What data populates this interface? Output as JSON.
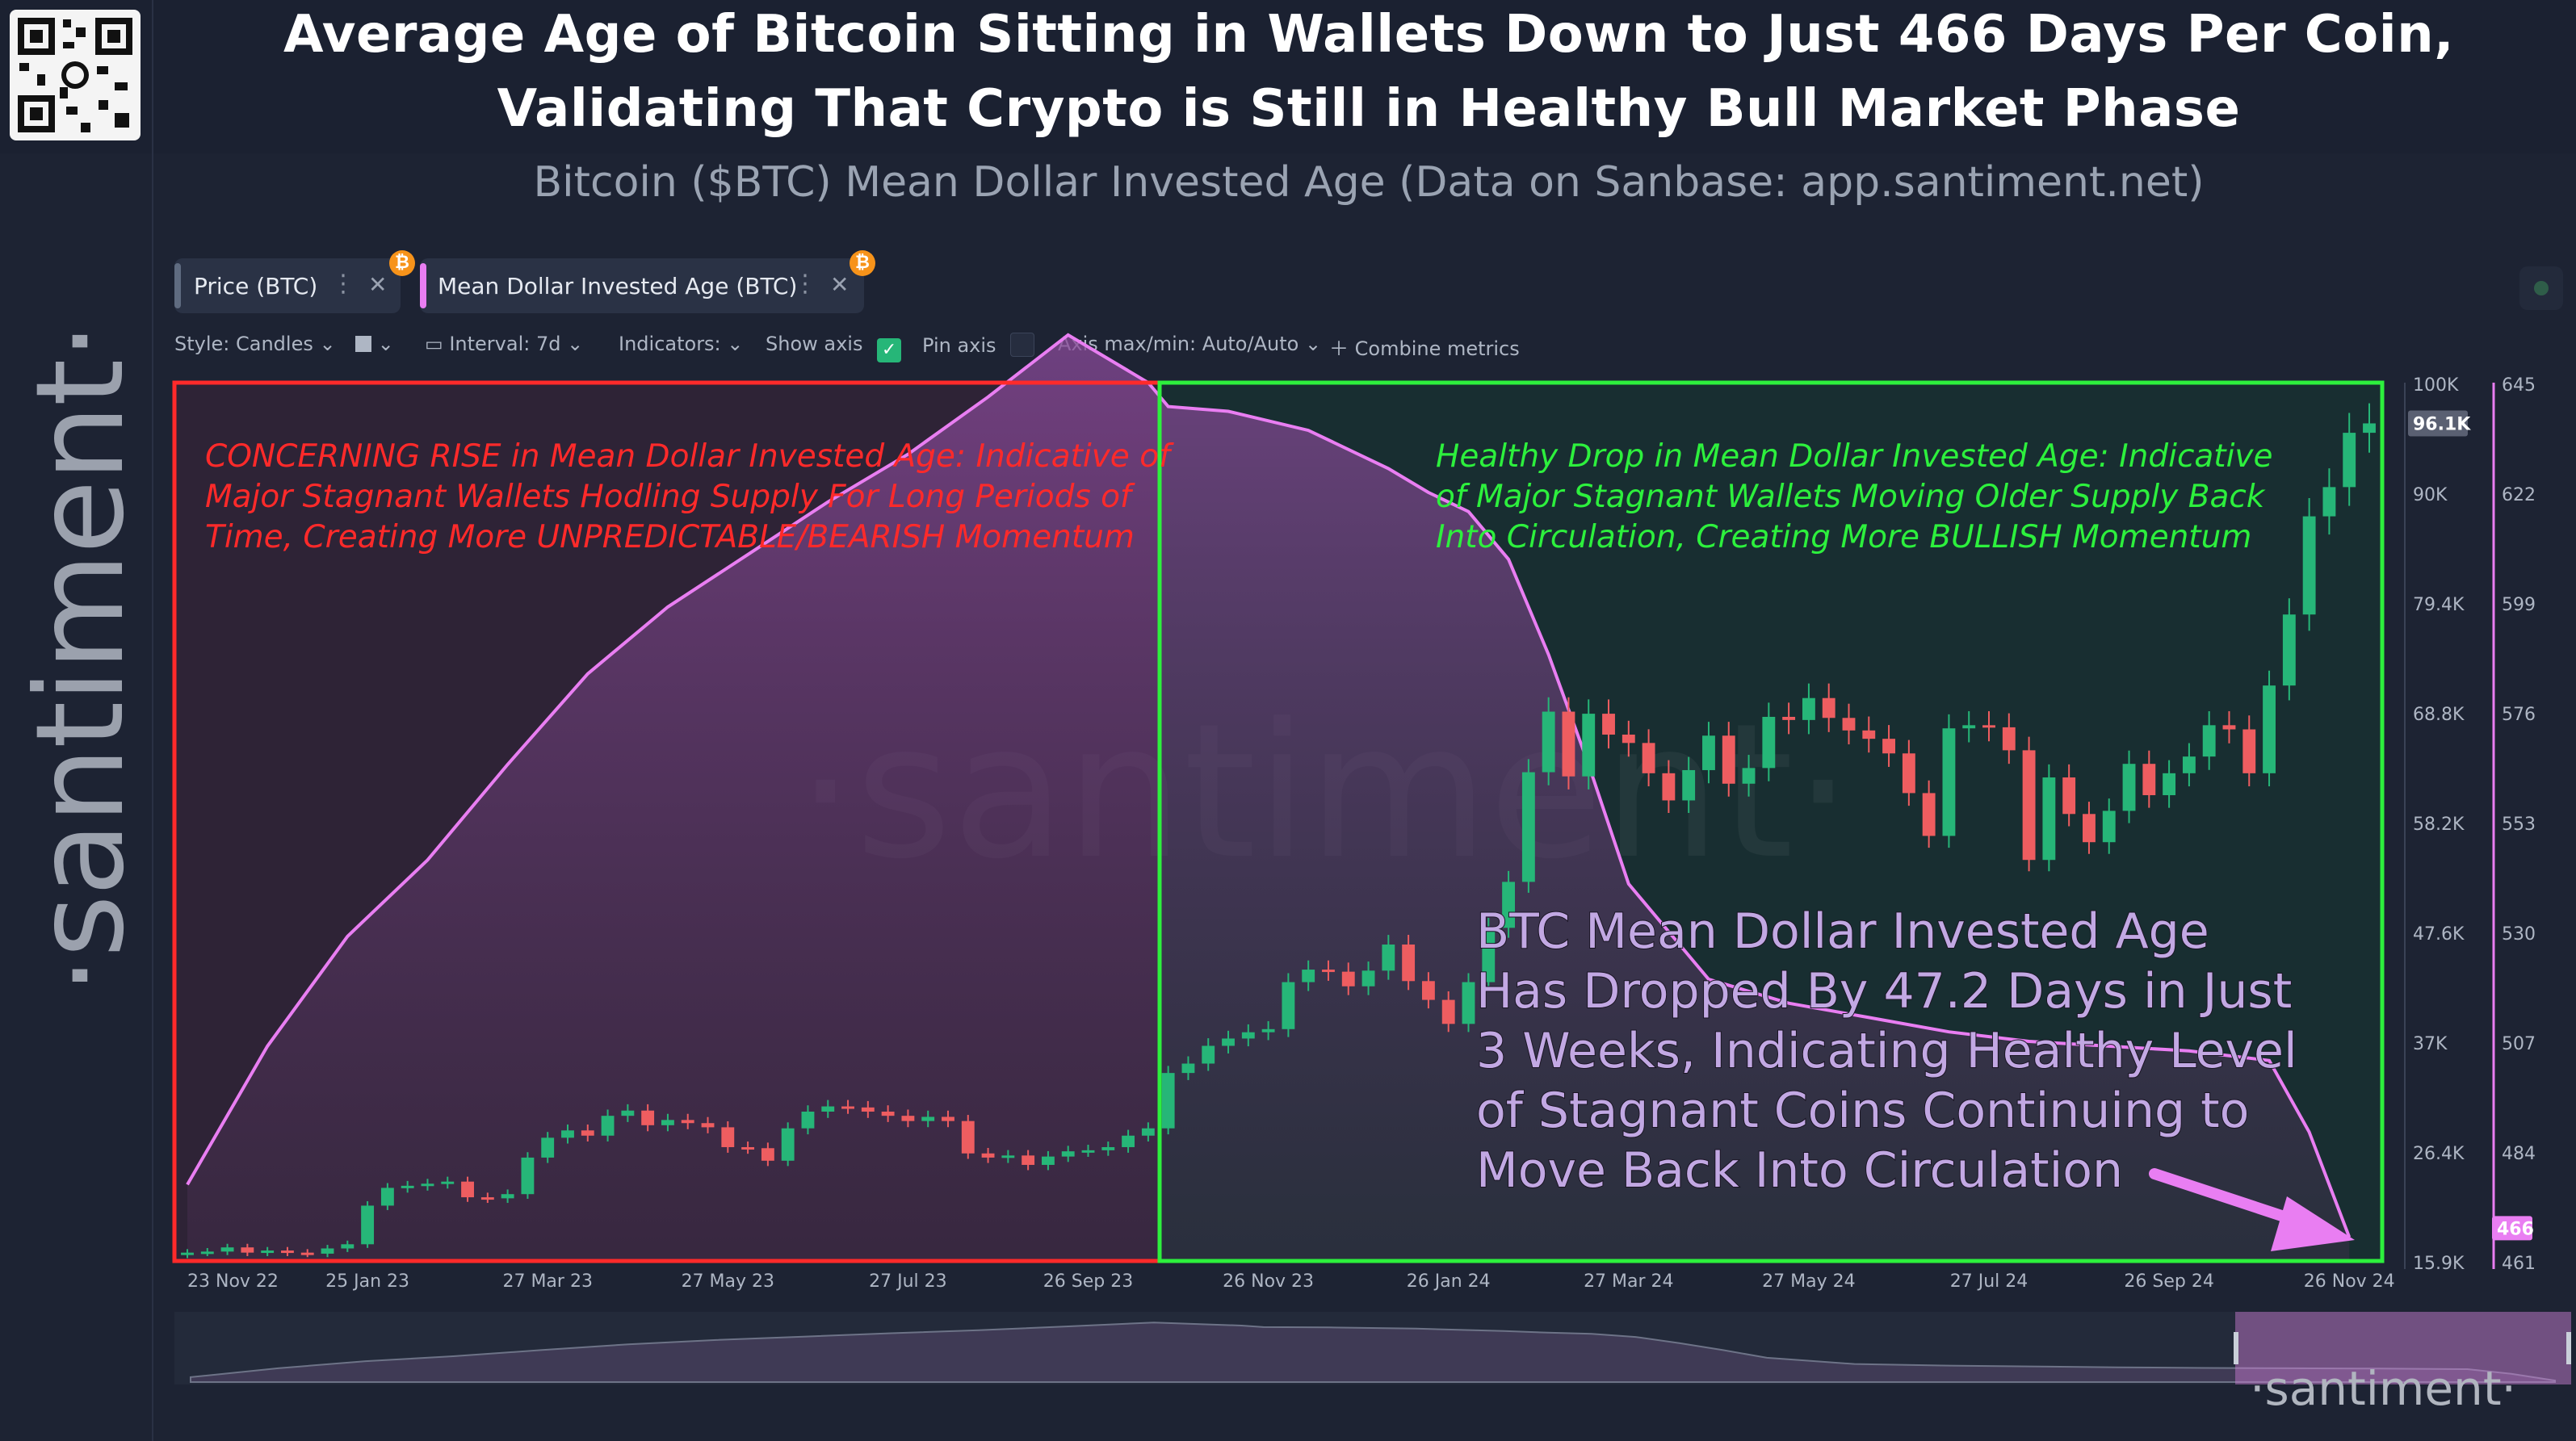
{
  "header": {
    "title_line1": "Average Age of Bitcoin Sitting in Wallets Down to Just 466 Days Per Coin,",
    "title_line2": "Validating That Crypto is Still in Healthy Bull Market Phase",
    "subtitle": "Bitcoin ($BTC) Mean Dollar Invested Age (Data on Sanbase: app.santiment.net)"
  },
  "brand": {
    "vertical_logo": "·santiment·",
    "watermark": "·santiment·",
    "navigator_logo": "·santiment·"
  },
  "metrics": [
    {
      "label": "Price (BTC)",
      "color": "#5f6b80"
    },
    {
      "label": "Mean Dollar Invested Age (BTC)",
      "color": "#e97ef2"
    }
  ],
  "toolbar": {
    "style": "Style: Candles",
    "interval": "Interval: 7d",
    "indicators": "Indicators:",
    "show_axis": "Show axis",
    "pin_axis": "Pin axis",
    "axis_minmax": "Axis max/min: Auto/Auto",
    "combine": "Combine metrics"
  },
  "icons": [
    "qr-code-icon",
    "bitcoin-icon",
    "more-dots-icon",
    "close-icon",
    "chevron-down-icon",
    "checkbox-checked-icon",
    "checkbox-empty-icon",
    "plus-icon",
    "status-dot-icon",
    "arrow-icon"
  ],
  "annotations": {
    "red_box_text": [
      "CONCERNING RISE in Mean Dollar Invested Age: Indicative of",
      "Major Stagnant Wallets Hodling Supply For Long Periods of",
      "Time, Creating More UNPREDICTABLE/BEARISH Momentum"
    ],
    "green_box_text": [
      "Healthy Drop in Mean Dollar Invested Age: Indicative",
      "of Major Stagnant Wallets Moving Older Supply Back",
      "Into Circulation, Creating More BULLISH Momentum"
    ],
    "callout_text": [
      "BTC Mean Dollar Invested Age",
      "Has Dropped By 47.2 Days in Just",
      "3 Weeks, Indicating Healthy Level",
      "of Stagnant Coins Continuing to",
      "Move Back Into Circulation"
    ],
    "red_color": "#ff2a2a",
    "green_color": "#2df03d",
    "callout_color": "#c2a8e3",
    "arrow_color": "#e97ef2"
  },
  "chart_data": {
    "type": "line",
    "x_tick_labels": [
      "23 Nov 22",
      "25 Jan 23",
      "27 Mar 23",
      "27 May 23",
      "27 Jul 23",
      "26 Sep 23",
      "26 Nov 23",
      "26 Jan 24",
      "27 Mar 24",
      "27 May 24",
      "27 Jul 24",
      "26 Sep 24",
      "26 Nov 24"
    ],
    "x_tick_index": [
      0,
      9,
      18,
      27,
      36,
      45,
      54,
      63,
      72,
      81,
      90,
      99,
      108
    ],
    "price_axis": {
      "labels": [
        "100K",
        "90K",
        "79.4K",
        "68.8K",
        "58.2K",
        "47.6K",
        "37K",
        "26.4K",
        "15.9K"
      ],
      "ylim": [
        15900,
        100000
      ],
      "current_label": "96.1K",
      "current_value": 96100
    },
    "mdia_axis": {
      "labels": [
        "645",
        "622",
        "599",
        "576",
        "553",
        "530",
        "507",
        "484",
        "461"
      ],
      "ylim": [
        461,
        645
      ],
      "current_label": "466",
      "current_value": 466
    },
    "mdia_series": {
      "name": "Mean Dollar Invested Age (BTC)",
      "color": "#e97ef2",
      "x": [
        0,
        4,
        8,
        12,
        16,
        20,
        24,
        28,
        32,
        36,
        40,
        44,
        48,
        49,
        52,
        56,
        60,
        62,
        64,
        66,
        68,
        70,
        72,
        74,
        76,
        80,
        84,
        88,
        92,
        96,
        100,
        104,
        106,
        108
      ],
      "values": [
        477,
        506,
        529,
        545,
        565,
        584,
        598,
        609,
        620,
        630,
        642,
        655,
        645,
        640,
        639,
        635,
        627,
        622,
        618,
        608,
        588,
        565,
        540,
        530,
        520,
        515,
        512,
        509,
        507,
        506,
        505,
        503,
        488,
        466
      ]
    },
    "price_series": {
      "name": "Price (BTC)",
      "up_color": "#26b678",
      "down_color": "#ee5d60",
      "open": [
        16500,
        16700,
        16800,
        17200,
        16700,
        16900,
        16700,
        16600,
        17100,
        17500,
        21200,
        22900,
        23100,
        23300,
        23500,
        22000,
        21900,
        22300,
        25800,
        27700,
        28400,
        27900,
        29800,
        30300,
        28900,
        29400,
        29100,
        28700,
        26800,
        26700,
        25500,
        28600,
        30200,
        30700,
        30600,
        30200,
        29800,
        29300,
        29700,
        29300,
        26200,
        25800,
        26000,
        25100,
        25900,
        26400,
        26500,
        26800,
        27900,
        28600,
        33900,
        34800,
        36500,
        37200,
        37800,
        38100,
        42600,
        43800,
        43600,
        42200,
        43700,
        46200,
        42700,
        40900,
        38600,
        42600,
        47800,
        52200,
        62700,
        68500,
        62300,
        68300,
        66300,
        65500,
        62600,
        60000,
        62900,
        66200,
        61600,
        63100,
        68000,
        67700,
        69800,
        67900,
        66700,
        65900,
        64500,
        60700,
        56600,
        66900,
        67200,
        67000,
        64800,
        54300,
        62200,
        58700,
        56000,
        59000,
        63500,
        60500,
        62600,
        64200,
        67200,
        66800,
        62600,
        71000,
        77800,
        87200,
        90000,
        95200
      ],
      "close": [
        16700,
        16800,
        17200,
        16700,
        16900,
        16700,
        16600,
        17100,
        17500,
        21200,
        22900,
        23100,
        23300,
        23500,
        22000,
        21900,
        22300,
        25800,
        27700,
        28400,
        27900,
        29800,
        30300,
        28900,
        29400,
        29100,
        28700,
        26800,
        26700,
        25500,
        28600,
        30200,
        30700,
        30600,
        30200,
        29800,
        29300,
        29700,
        29300,
        26200,
        25800,
        26000,
        25100,
        25900,
        26400,
        26500,
        26800,
        27900,
        28600,
        33900,
        34800,
        36500,
        37200,
        37800,
        38100,
        42600,
        43800,
        43600,
        42200,
        43700,
        46200,
        42700,
        40900,
        38600,
        42600,
        47800,
        52200,
        62700,
        68500,
        62300,
        68300,
        66300,
        65500,
        62600,
        60000,
        62900,
        66200,
        61600,
        63100,
        68000,
        67700,
        69800,
        67900,
        66700,
        65900,
        64500,
        60700,
        56600,
        66900,
        67200,
        67000,
        64800,
        54300,
        62200,
        58700,
        56000,
        59000,
        63500,
        60500,
        62600,
        64200,
        67200,
        66800,
        62600,
        71000,
        77800,
        87200,
        90000,
        95200,
        96100
      ]
    },
    "xlabel": "",
    "ylabel": "",
    "grid": false,
    "legend": "top-left"
  }
}
